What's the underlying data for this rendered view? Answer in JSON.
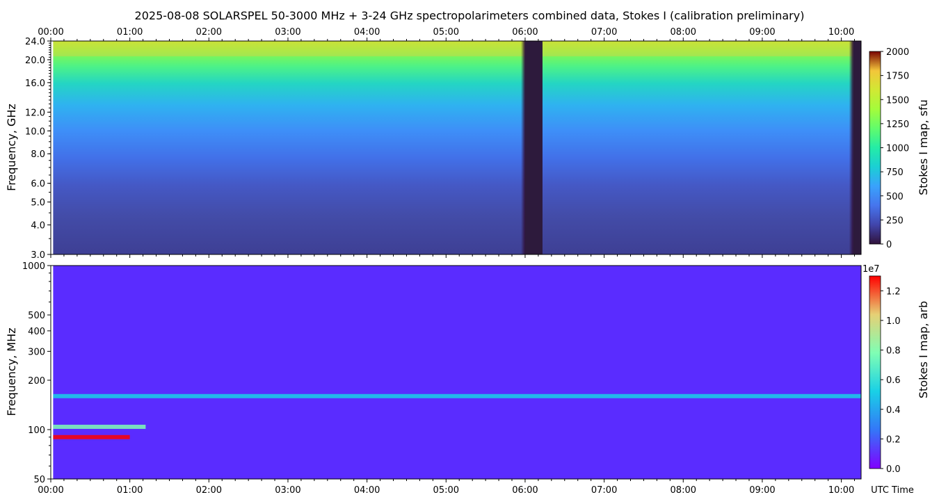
{
  "title": "2025-08-08  SOLARSPEL  50-3000 MHz  +  3-24 GHz  spectropolarimeters combined data,  Stokes I  (calibration preliminary)",
  "time_axis": {
    "label": "UTC Time",
    "range_hours": [
      0.0,
      10.25
    ],
    "ticks": [
      "00:00",
      "01:00",
      "02:00",
      "03:00",
      "04:00",
      "05:00",
      "06:00",
      "07:00",
      "08:00",
      "09:00",
      "10:00"
    ],
    "data_start_hours": 0.03
  },
  "chart_data": [
    {
      "type": "heatmap",
      "panel": "top",
      "ylabel": "Frequency, GHz",
      "yscale": "log",
      "ylim": [
        3.0,
        24.0
      ],
      "y_ticks": [
        "3.0",
        "4.0",
        "5.0",
        "6.0",
        "8.0",
        "10.0",
        "12.0",
        "16.0",
        "20.0",
        "24.0"
      ],
      "colorbar": {
        "label": "Stokes I map, sfu",
        "colormap": "turbo",
        "range": [
          0,
          2000
        ],
        "ticks": [
          "0",
          "250",
          "500",
          "750",
          "1000",
          "1250",
          "1500",
          "1750",
          "2000"
        ]
      },
      "gaps_hours": [
        [
          6.0,
          6.22
        ],
        [
          10.15,
          10.25
        ]
      ]
    },
    {
      "type": "heatmap",
      "panel": "bottom",
      "ylabel": "Frequency, MHz",
      "yscale": "log",
      "ylim": [
        50,
        1000
      ],
      "y_ticks": [
        "50",
        "100",
        "200",
        "300",
        "400",
        "500",
        "1000"
      ],
      "colorbar": {
        "label": "Stokes I map, arb",
        "colormap": "rainbow",
        "range": [
          0.0,
          1.3
        ],
        "exponent_label": "1e7",
        "ticks": [
          "0.0",
          "0.2",
          "0.4",
          "0.6",
          "0.8",
          "1.0",
          "1.2"
        ]
      },
      "bright_bands_mhz": [
        {
          "freq": 90,
          "t_end_hours": 1.0,
          "peak": 1.3
        },
        {
          "freq": 104,
          "t_end_hours": 1.2,
          "peak": 0.6
        },
        {
          "freq": 160,
          "t_end_hours": 10.25,
          "peak": 0.5
        }
      ]
    }
  ]
}
